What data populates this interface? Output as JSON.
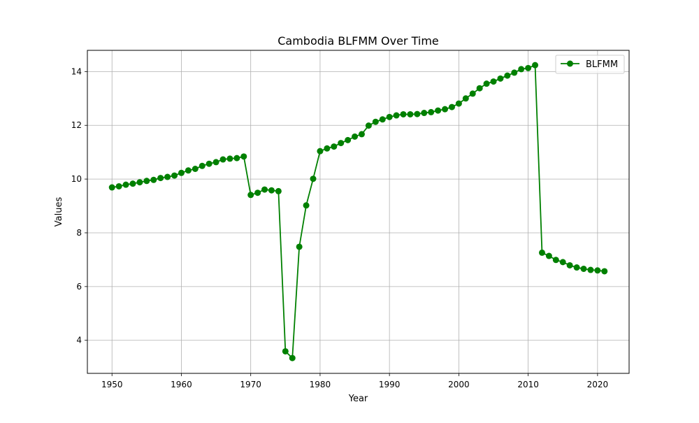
{
  "chart_data": {
    "type": "line",
    "title": "Cambodia BLFMM Over Time",
    "xlabel": "Year",
    "ylabel": "Values",
    "xlim": [
      1946.45,
      2024.55
    ],
    "ylim": [
      2.77,
      14.79
    ],
    "xticks": [
      1950,
      1960,
      1970,
      1980,
      1990,
      2000,
      2010,
      2020
    ],
    "yticks": [
      4,
      6,
      8,
      10,
      12,
      14
    ],
    "grid": true,
    "legend_position": "top-right",
    "colors": {
      "series": "#008000",
      "grid": "#b0b0b0",
      "axes": "#000000",
      "legend_border": "#cccccc"
    },
    "series": [
      {
        "name": "BLFMM",
        "x": [
          1950,
          1951,
          1952,
          1953,
          1954,
          1955,
          1956,
          1957,
          1958,
          1959,
          1960,
          1961,
          1962,
          1963,
          1964,
          1965,
          1966,
          1967,
          1968,
          1969,
          1970,
          1971,
          1972,
          1973,
          1974,
          1975,
          1976,
          1977,
          1978,
          1979,
          1980,
          1981,
          1982,
          1983,
          1984,
          1985,
          1986,
          1987,
          1988,
          1989,
          1990,
          1991,
          1992,
          1993,
          1994,
          1995,
          1996,
          1997,
          1998,
          1999,
          2000,
          2001,
          2002,
          2003,
          2004,
          2005,
          2006,
          2007,
          2008,
          2009,
          2010,
          2011,
          2012,
          2013,
          2014,
          2015,
          2016,
          2017,
          2018,
          2019,
          2020,
          2021
        ],
        "y": [
          9.69,
          9.73,
          9.79,
          9.83,
          9.88,
          9.93,
          9.97,
          10.04,
          10.08,
          10.13,
          10.23,
          10.32,
          10.38,
          10.49,
          10.57,
          10.63,
          10.73,
          10.76,
          10.78,
          10.84,
          9.41,
          9.49,
          9.61,
          9.58,
          9.55,
          3.59,
          3.34,
          7.48,
          9.02,
          10.01,
          11.04,
          11.14,
          11.21,
          11.34,
          11.45,
          11.58,
          11.67,
          11.99,
          12.13,
          12.22,
          12.31,
          12.37,
          12.41,
          12.41,
          12.42,
          12.46,
          12.49,
          12.55,
          12.6,
          12.68,
          12.81,
          13.0,
          13.18,
          13.38,
          13.55,
          13.63,
          13.74,
          13.85,
          13.96,
          14.09,
          14.13,
          14.24,
          7.26,
          7.14,
          6.99,
          6.91,
          6.79,
          6.71,
          6.66,
          6.62,
          6.6,
          6.57
        ]
      }
    ]
  }
}
